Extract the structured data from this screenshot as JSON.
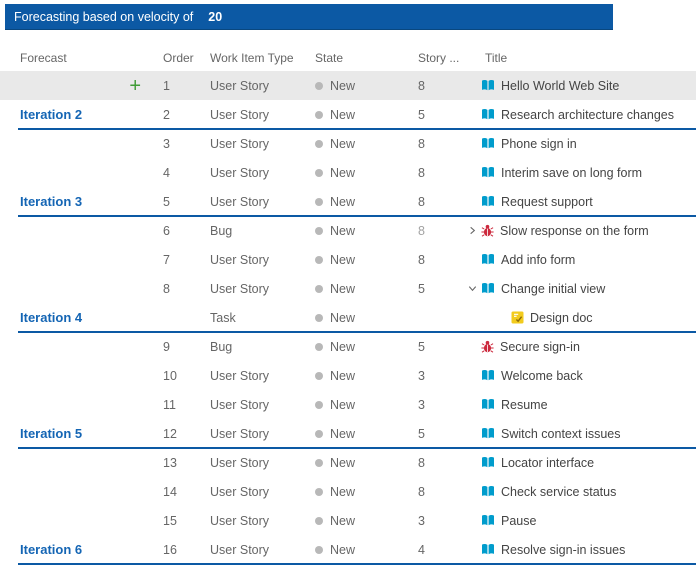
{
  "toolbar": {
    "label": "Forecasting based on velocity of",
    "velocity": "20",
    "background": "#0c59a4"
  },
  "columns": [
    {
      "key": "forecast",
      "label": "Forecast"
    },
    {
      "key": "order",
      "label": "Order"
    },
    {
      "key": "type",
      "label": "Work Item Type"
    },
    {
      "key": "state",
      "label": "State"
    },
    {
      "key": "points",
      "label": "Story ..."
    },
    {
      "key": "title",
      "label": "Title"
    }
  ],
  "colors": {
    "accent_blue": "#0c59a4",
    "iteration_blue": "#1465b4",
    "user_story_icon": "#009ccc",
    "bug_icon": "#cc293d",
    "task_icon": "#f2cb1d",
    "add_green": "#3f9c35",
    "state_dot": "#b8b8b8",
    "highlight_row": "#e9e9e9"
  },
  "icons": {
    "user-story": "user-story-icon",
    "bug": "bug-icon",
    "task": "task-icon",
    "add": "add-icon",
    "chevron_right": "chevron-right-icon",
    "chevron_down": "chevron-down-icon"
  },
  "rows": [
    {
      "forecast": "",
      "order": "1",
      "type": "User Story",
      "state": "New",
      "points": "8",
      "title": "Hello World Web Site",
      "icon": "user-story",
      "chevron": "",
      "indent": 0,
      "line": false,
      "highlight": true,
      "add": true,
      "dim": false
    },
    {
      "forecast": "Iteration 2",
      "order": "2",
      "type": "User Story",
      "state": "New",
      "points": "5",
      "title": "Research architecture changes",
      "icon": "user-story",
      "chevron": "",
      "indent": 0,
      "line": true,
      "highlight": false,
      "add": false,
      "dim": false
    },
    {
      "forecast": "",
      "order": "3",
      "type": "User Story",
      "state": "New",
      "points": "8",
      "title": "Phone sign in",
      "icon": "user-story",
      "chevron": "",
      "indent": 0,
      "line": false,
      "highlight": false,
      "add": false,
      "dim": false
    },
    {
      "forecast": "",
      "order": "4",
      "type": "User Story",
      "state": "New",
      "points": "8",
      "title": "Interim save on long form",
      "icon": "user-story",
      "chevron": "",
      "indent": 0,
      "line": false,
      "highlight": false,
      "add": false,
      "dim": false
    },
    {
      "forecast": "Iteration 3",
      "order": "5",
      "type": "User Story",
      "state": "New",
      "points": "8",
      "title": "Request support",
      "icon": "user-story",
      "chevron": "",
      "indent": 0,
      "line": true,
      "highlight": false,
      "add": false,
      "dim": false
    },
    {
      "forecast": "",
      "order": "6",
      "type": "Bug",
      "state": "New",
      "points": "8",
      "title": "Slow response on the form",
      "icon": "bug",
      "chevron": "right",
      "indent": 0,
      "line": false,
      "highlight": false,
      "add": false,
      "dim": true
    },
    {
      "forecast": "",
      "order": "7",
      "type": "User Story",
      "state": "New",
      "points": "8",
      "title": "Add info form",
      "icon": "user-story",
      "chevron": "",
      "indent": 0,
      "line": false,
      "highlight": false,
      "add": false,
      "dim": false
    },
    {
      "forecast": "",
      "order": "8",
      "type": "User Story",
      "state": "New",
      "points": "5",
      "title": "Change initial view",
      "icon": "user-story",
      "chevron": "down",
      "indent": 0,
      "line": false,
      "highlight": false,
      "add": false,
      "dim": false
    },
    {
      "forecast": "Iteration 4",
      "order": "",
      "type": "Task",
      "state": "New",
      "points": "",
      "title": "Design doc",
      "icon": "task",
      "chevron": "",
      "indent": 1,
      "line": true,
      "highlight": false,
      "add": false,
      "dim": false
    },
    {
      "forecast": "",
      "order": "9",
      "type": "Bug",
      "state": "New",
      "points": "5",
      "title": "Secure sign-in",
      "icon": "bug",
      "chevron": "",
      "indent": 0,
      "line": false,
      "highlight": false,
      "add": false,
      "dim": false
    },
    {
      "forecast": "",
      "order": "10",
      "type": "User Story",
      "state": "New",
      "points": "3",
      "title": "Welcome back",
      "icon": "user-story",
      "chevron": "",
      "indent": 0,
      "line": false,
      "highlight": false,
      "add": false,
      "dim": false
    },
    {
      "forecast": "",
      "order": "11",
      "type": "User Story",
      "state": "New",
      "points": "3",
      "title": "Resume",
      "icon": "user-story",
      "chevron": "",
      "indent": 0,
      "line": false,
      "highlight": false,
      "add": false,
      "dim": false
    },
    {
      "forecast": "Iteration 5",
      "order": "12",
      "type": "User Story",
      "state": "New",
      "points": "5",
      "title": "Switch context issues",
      "icon": "user-story",
      "chevron": "",
      "indent": 0,
      "line": true,
      "highlight": false,
      "add": false,
      "dim": false
    },
    {
      "forecast": "",
      "order": "13",
      "type": "User Story",
      "state": "New",
      "points": "8",
      "title": "Locator interface",
      "icon": "user-story",
      "chevron": "",
      "indent": 0,
      "line": false,
      "highlight": false,
      "add": false,
      "dim": false
    },
    {
      "forecast": "",
      "order": "14",
      "type": "User Story",
      "state": "New",
      "points": "8",
      "title": "Check service status",
      "icon": "user-story",
      "chevron": "",
      "indent": 0,
      "line": false,
      "highlight": false,
      "add": false,
      "dim": false
    },
    {
      "forecast": "",
      "order": "15",
      "type": "User Story",
      "state": "New",
      "points": "3",
      "title": "Pause",
      "icon": "user-story",
      "chevron": "",
      "indent": 0,
      "line": false,
      "highlight": false,
      "add": false,
      "dim": false
    },
    {
      "forecast": "Iteration 6",
      "order": "16",
      "type": "User Story",
      "state": "New",
      "points": "4",
      "title": "Resolve sign-in issues",
      "icon": "user-story",
      "chevron": "",
      "indent": 0,
      "line": true,
      "highlight": false,
      "add": false,
      "dim": false
    }
  ]
}
